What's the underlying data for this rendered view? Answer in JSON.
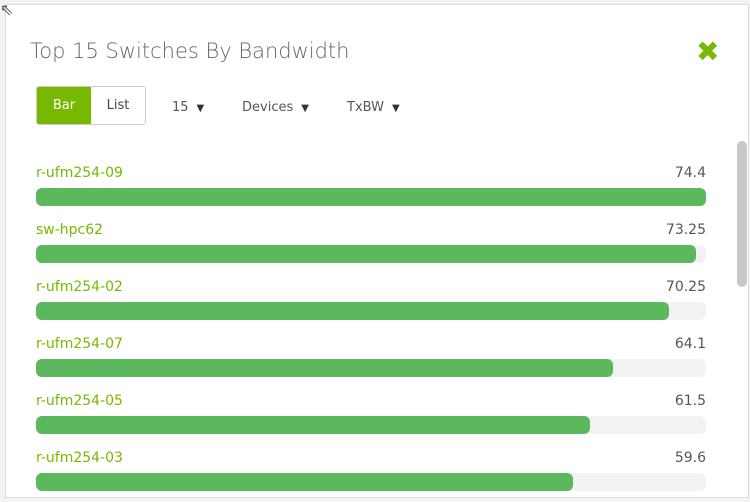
{
  "title": "Top 15 Switches By Bandwidth",
  "controls": {
    "bar_label": "Bar",
    "list_label": "List",
    "count": "15",
    "scope": "Devices",
    "metric": "TxBW"
  },
  "colors": {
    "accent": "#76b900",
    "bar": "#5cb85c"
  },
  "icons": {
    "close": "close-x-icon",
    "resize": "resize-arrow-icon"
  },
  "chart_data": {
    "type": "bar",
    "categories": [
      "r-ufm254-09",
      "sw-hpc62",
      "r-ufm254-02",
      "r-ufm254-07",
      "r-ufm254-05",
      "r-ufm254-03"
    ],
    "values": [
      74.4,
      73.25,
      70.25,
      64.1,
      61.5,
      59.6
    ],
    "max": 74.4
  }
}
